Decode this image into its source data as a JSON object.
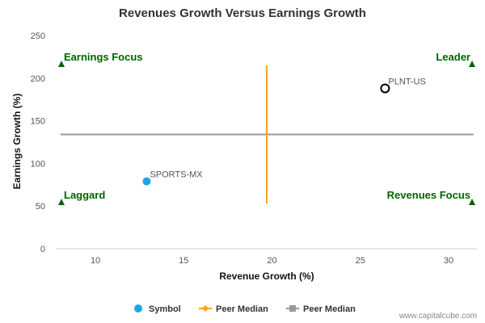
{
  "chart_data": {
    "type": "scatter",
    "title": "Revenues Growth Versus Earnings Growth",
    "xlabel": "Revenue Growth (%)",
    "ylabel": "Earnings Growth (%)",
    "xlim": [
      7.8,
      31.6
    ],
    "ylim": [
      0,
      250
    ],
    "xticks": [
      10,
      15,
      20,
      25,
      30
    ],
    "yticks": [
      0,
      50,
      100,
      150,
      200,
      250
    ],
    "grid": false,
    "points": [
      {
        "label": "SPORTS-MX",
        "x": 12.9,
        "y": 79,
        "style": "filled",
        "color": "#1aa7e8"
      },
      {
        "label": "PLNT-US",
        "x": 26.4,
        "y": 188,
        "style": "hollow",
        "color": "#000000"
      }
    ],
    "peer_median": {
      "x": 19.7,
      "y": 134
    },
    "quadrants": [
      {
        "label": "Earnings Focus",
        "position": "top-left"
      },
      {
        "label": "Leader",
        "position": "top-right"
      },
      {
        "label": "Laggard",
        "position": "bottom-left"
      },
      {
        "label": "Revenues Focus",
        "position": "bottom-right"
      }
    ],
    "legend": {
      "placement": "bottom",
      "items": [
        {
          "label": "Symbol",
          "marker": "circle",
          "color": "#1aa7e8"
        },
        {
          "label": "Peer Median",
          "marker": "diamond-line",
          "color": "#f5a623"
        },
        {
          "label": "Peer Median",
          "marker": "square-line",
          "color": "#999999"
        }
      ]
    },
    "colors": {
      "quadrant": "#006400",
      "vertical_median": "#f5a623",
      "horizontal_median": "#999999",
      "axis": "#c0d0e0"
    }
  },
  "credit": "www.capitalcube.com"
}
